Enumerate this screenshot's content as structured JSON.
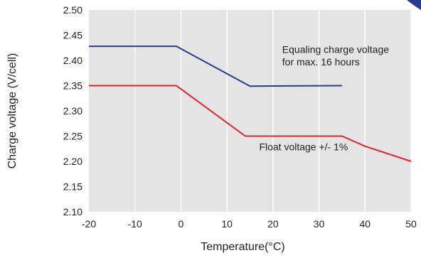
{
  "chart_data": {
    "type": "line",
    "xlabel": "Temperature(°C)",
    "ylabel": "Charge voltage (V/cell)",
    "xlim": [
      -20,
      50
    ],
    "ylim": [
      2.1,
      2.5
    ],
    "x_ticks": [
      -20,
      -10,
      0,
      10,
      20,
      30,
      40,
      50
    ],
    "y_ticks": [
      "2.10",
      "2.15",
      "2.20",
      "2.25",
      "2.30",
      "2.35",
      "2.40",
      "2.45",
      "2.50"
    ],
    "grid": "vertical",
    "background": "#e4e4e4",
    "series": [
      {
        "color": "#2b3a8c",
        "points": [
          [
            -20,
            2.428
          ],
          [
            -1,
            2.428
          ],
          [
            15,
            2.349
          ],
          [
            35,
            2.35
          ]
        ]
      },
      {
        "color": "#e0242a",
        "points": [
          [
            -20,
            2.35
          ],
          [
            -1,
            2.35
          ],
          [
            14,
            2.25
          ],
          [
            35,
            2.25
          ],
          [
            40,
            2.23
          ],
          [
            50,
            2.2
          ]
        ]
      }
    ],
    "annotations": [
      {
        "text": "Equaling charge voltage",
        "x": 22,
        "y": 2.415
      },
      {
        "text": "for max. 16 hours",
        "x": 22,
        "y": 2.39
      },
      {
        "text": "Float voltage +/- 1%",
        "x": 17,
        "y": 2.222
      }
    ]
  }
}
